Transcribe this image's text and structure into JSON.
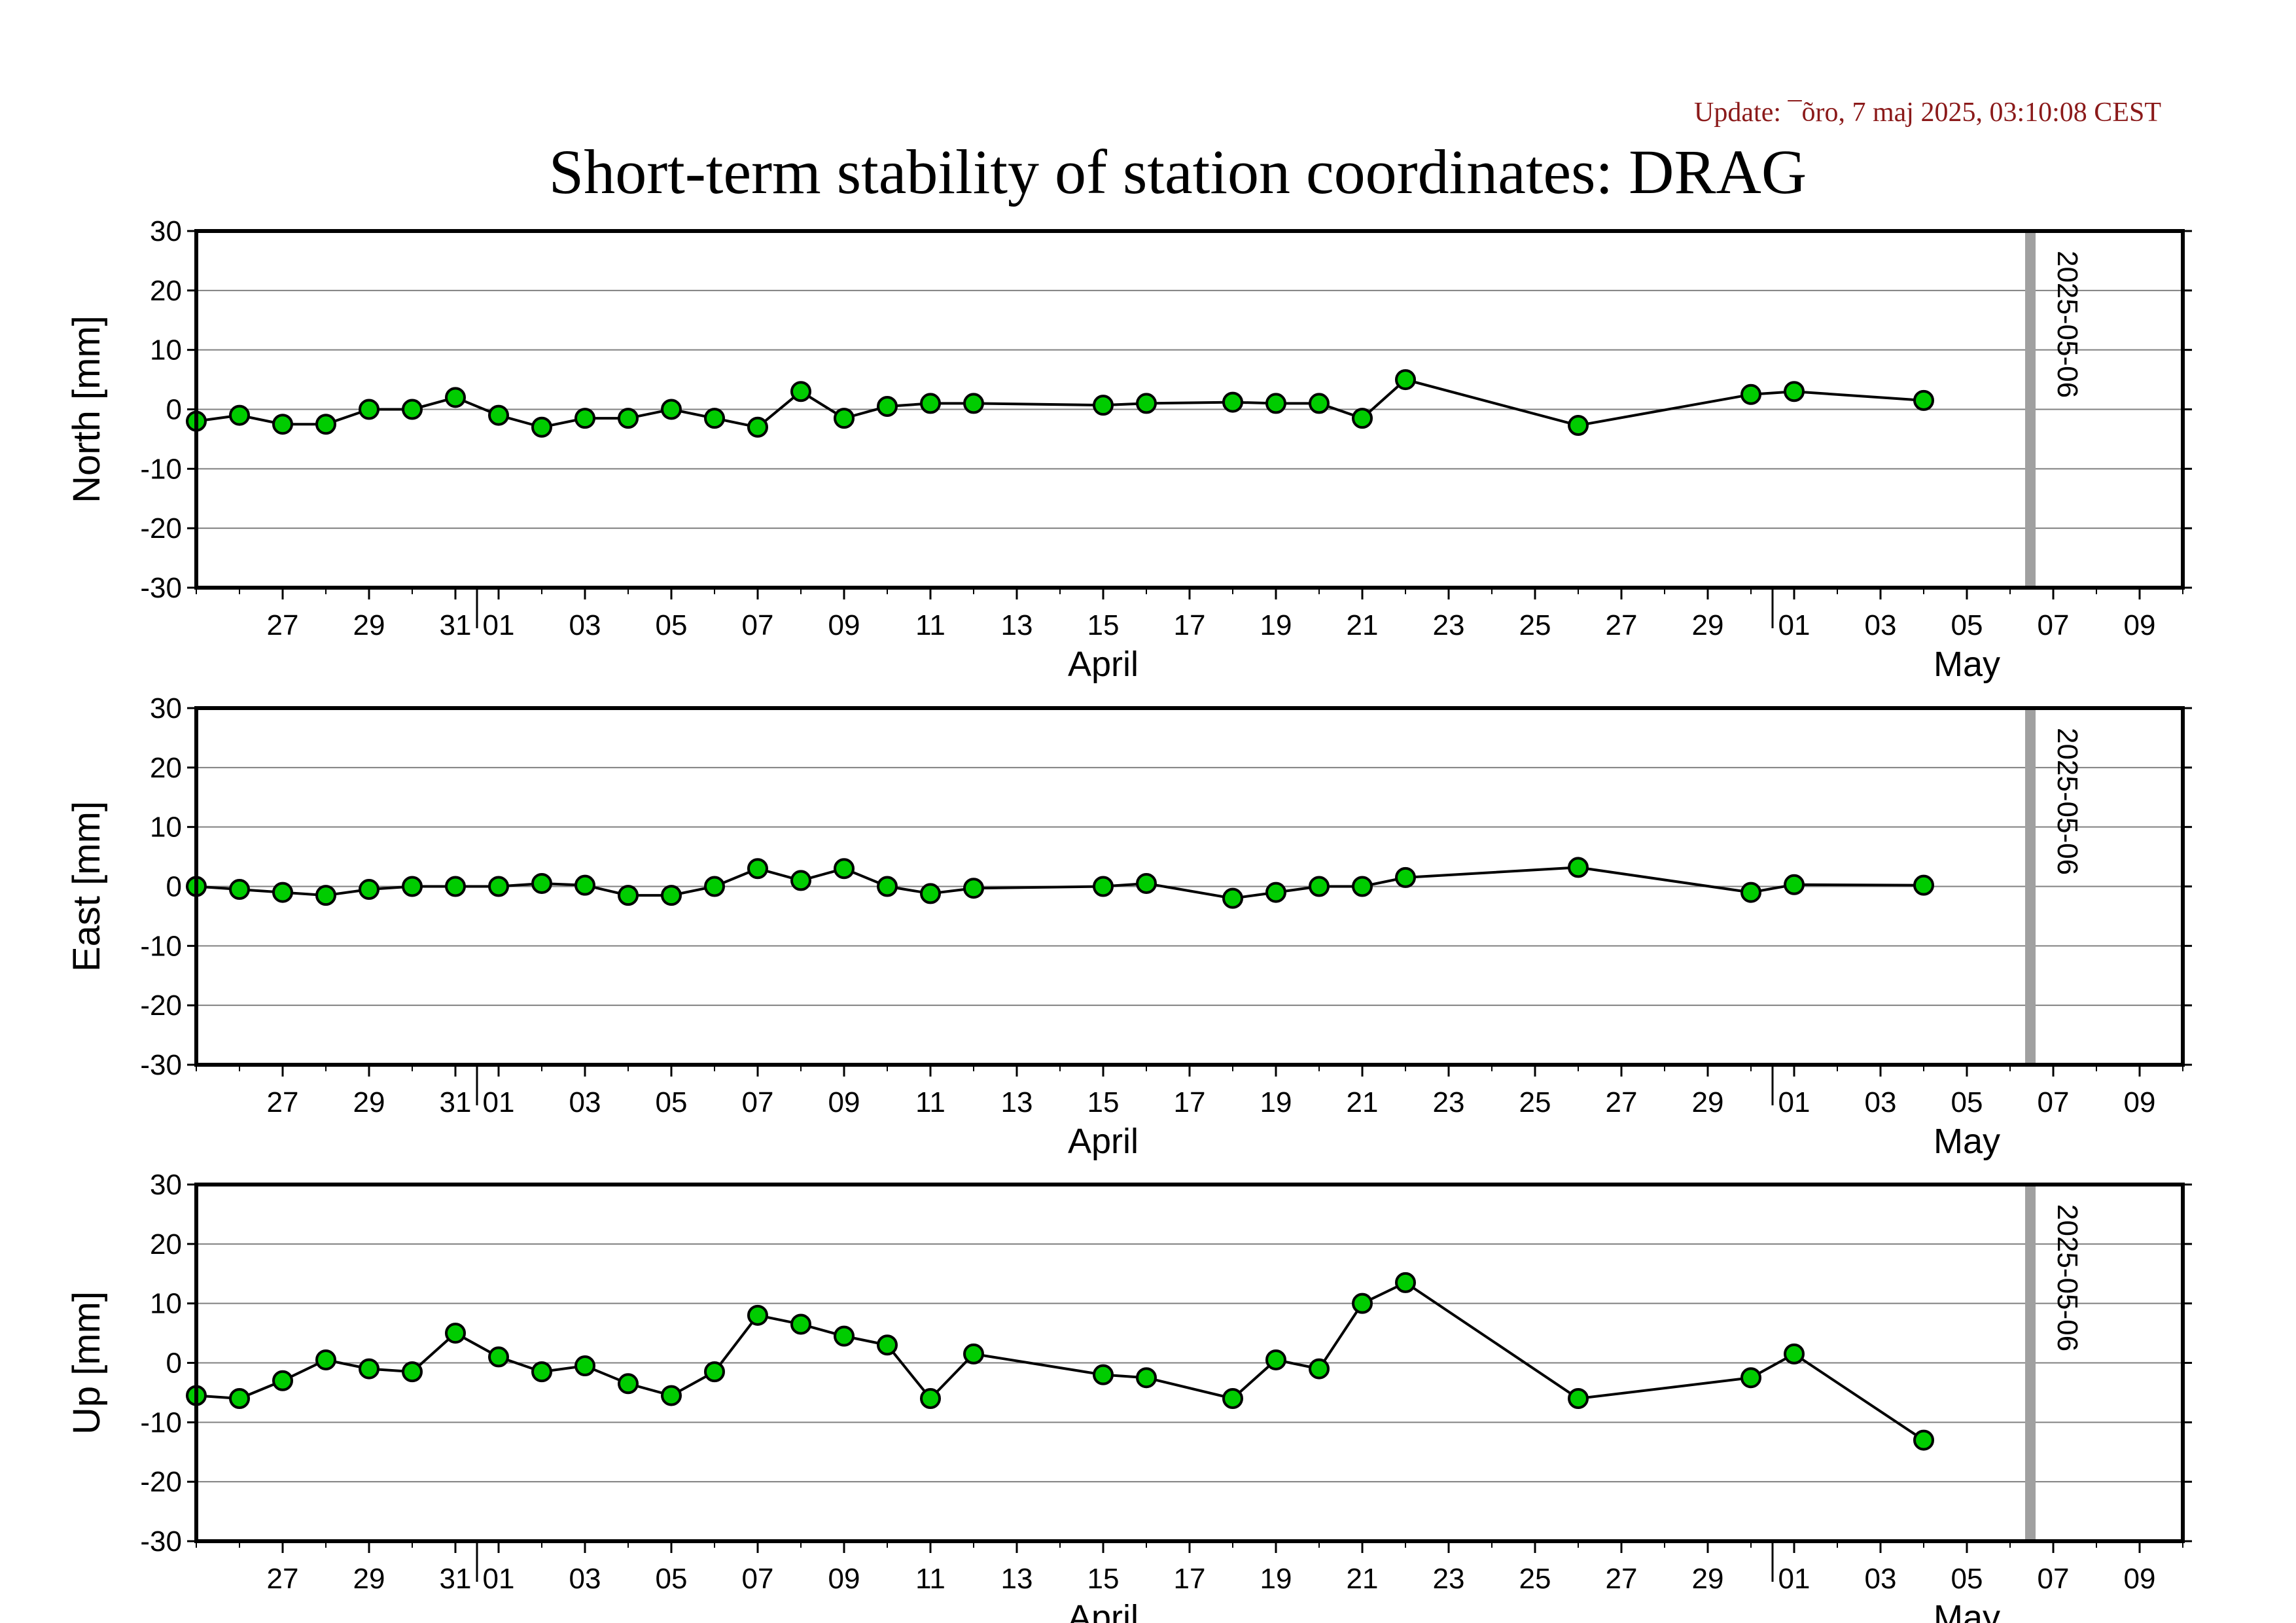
{
  "update_text": "Update: ¯õro, 7 maj 2025, 03:10:08 CEST",
  "title": "Short-term stability of station coordinates: DRAG",
  "chart_data": [
    {
      "type": "line",
      "ylabel": "North [mm]",
      "ylim": [
        -30,
        30
      ],
      "yticks": [
        -30,
        -20,
        -10,
        0,
        10,
        20,
        30
      ],
      "xlim": [
        "2025-03-25",
        "2025-05-10"
      ],
      "x_ticks": [
        {
          "date": "2025-03-27",
          "label": "27"
        },
        {
          "date": "2025-03-29",
          "label": "29"
        },
        {
          "date": "2025-03-31",
          "label": "31"
        },
        {
          "date": "2025-04-01",
          "label": "01"
        },
        {
          "date": "2025-04-03",
          "label": "03"
        },
        {
          "date": "2025-04-05",
          "label": "05"
        },
        {
          "date": "2025-04-07",
          "label": "07"
        },
        {
          "date": "2025-04-09",
          "label": "09"
        },
        {
          "date": "2025-04-11",
          "label": "11"
        },
        {
          "date": "2025-04-13",
          "label": "13"
        },
        {
          "date": "2025-04-15",
          "label": "15"
        },
        {
          "date": "2025-04-17",
          "label": "17"
        },
        {
          "date": "2025-04-19",
          "label": "19"
        },
        {
          "date": "2025-04-21",
          "label": "21"
        },
        {
          "date": "2025-04-23",
          "label": "23"
        },
        {
          "date": "2025-04-25",
          "label": "25"
        },
        {
          "date": "2025-04-27",
          "label": "27"
        },
        {
          "date": "2025-04-29",
          "label": "29"
        },
        {
          "date": "2025-05-01",
          "label": "01"
        },
        {
          "date": "2025-05-03",
          "label": "03"
        },
        {
          "date": "2025-05-05",
          "label": "05"
        },
        {
          "date": "2025-05-07",
          "label": "07"
        },
        {
          "date": "2025-05-09",
          "label": "09"
        }
      ],
      "month_labels": [
        {
          "date": "2025-04-15",
          "label": "April"
        },
        {
          "date": "2025-05-05",
          "label": "May"
        }
      ],
      "month_boundaries": [
        "2025-03-31T12:00",
        "2025-04-30T12:00"
      ],
      "marker": {
        "date": "2025-05-06",
        "label": "2025-05-06"
      },
      "grid": true,
      "series": [
        {
          "color": "#00cc00",
          "points": [
            [
              "2025-03-25",
              -2
            ],
            [
              "2025-03-26",
              -1
            ],
            [
              "2025-03-27",
              -2.5
            ],
            [
              "2025-03-28",
              -2.5
            ],
            [
              "2025-03-29",
              0
            ],
            [
              "2025-03-30",
              0
            ],
            [
              "2025-03-31",
              2
            ],
            [
              "2025-04-01",
              -1
            ],
            [
              "2025-04-02",
              -3
            ],
            [
              "2025-04-03",
              -1.5
            ],
            [
              "2025-04-04",
              -1.5
            ],
            [
              "2025-04-05",
              0
            ],
            [
              "2025-04-06",
              -1.5
            ],
            [
              "2025-04-07",
              -3
            ],
            [
              "2025-04-08",
              3
            ],
            [
              "2025-04-09",
              -1.5
            ],
            [
              "2025-04-10",
              0.5
            ],
            [
              "2025-04-11",
              1
            ],
            [
              "2025-04-12",
              1
            ],
            [
              "2025-04-15",
              0.7
            ],
            [
              "2025-04-16",
              1
            ],
            [
              "2025-04-18",
              1.2
            ],
            [
              "2025-04-19",
              1
            ],
            [
              "2025-04-20",
              1
            ],
            [
              "2025-04-21",
              -1.5
            ],
            [
              "2025-04-22",
              5
            ],
            [
              "2025-04-26",
              -2.7
            ],
            [
              "2025-04-30",
              2.5
            ],
            [
              "2025-05-01",
              3
            ],
            [
              "2025-05-04",
              1.5
            ]
          ]
        }
      ]
    },
    {
      "type": "line",
      "ylabel": "East [mm]",
      "ylim": [
        -30,
        30
      ],
      "yticks": [
        -30,
        -20,
        -10,
        0,
        10,
        20,
        30
      ],
      "xlim": [
        "2025-03-25",
        "2025-05-10"
      ],
      "x_ticks": [
        {
          "date": "2025-03-27",
          "label": "27"
        },
        {
          "date": "2025-03-29",
          "label": "29"
        },
        {
          "date": "2025-03-31",
          "label": "31"
        },
        {
          "date": "2025-04-01",
          "label": "01"
        },
        {
          "date": "2025-04-03",
          "label": "03"
        },
        {
          "date": "2025-04-05",
          "label": "05"
        },
        {
          "date": "2025-04-07",
          "label": "07"
        },
        {
          "date": "2025-04-09",
          "label": "09"
        },
        {
          "date": "2025-04-11",
          "label": "11"
        },
        {
          "date": "2025-04-13",
          "label": "13"
        },
        {
          "date": "2025-04-15",
          "label": "15"
        },
        {
          "date": "2025-04-17",
          "label": "17"
        },
        {
          "date": "2025-04-19",
          "label": "19"
        },
        {
          "date": "2025-04-21",
          "label": "21"
        },
        {
          "date": "2025-04-23",
          "label": "23"
        },
        {
          "date": "2025-04-25",
          "label": "25"
        },
        {
          "date": "2025-04-27",
          "label": "27"
        },
        {
          "date": "2025-04-29",
          "label": "29"
        },
        {
          "date": "2025-05-01",
          "label": "01"
        },
        {
          "date": "2025-05-03",
          "label": "03"
        },
        {
          "date": "2025-05-05",
          "label": "05"
        },
        {
          "date": "2025-05-07",
          "label": "07"
        },
        {
          "date": "2025-05-09",
          "label": "09"
        }
      ],
      "month_labels": [
        {
          "date": "2025-04-15",
          "label": "April"
        },
        {
          "date": "2025-05-05",
          "label": "May"
        }
      ],
      "month_boundaries": [
        "2025-03-31T12:00",
        "2025-04-30T12:00"
      ],
      "marker": {
        "date": "2025-05-06",
        "label": "2025-05-06"
      },
      "grid": true,
      "series": [
        {
          "color": "#00cc00",
          "points": [
            [
              "2025-03-25",
              0
            ],
            [
              "2025-03-26",
              -0.5
            ],
            [
              "2025-03-27",
              -1
            ],
            [
              "2025-03-28",
              -1.5
            ],
            [
              "2025-03-29",
              -0.5
            ],
            [
              "2025-03-30",
              0
            ],
            [
              "2025-03-31",
              0
            ],
            [
              "2025-04-01",
              0
            ],
            [
              "2025-04-02",
              0.5
            ],
            [
              "2025-04-03",
              0.2
            ],
            [
              "2025-04-04",
              -1.5
            ],
            [
              "2025-04-05",
              -1.5
            ],
            [
              "2025-04-06",
              0
            ],
            [
              "2025-04-07",
              3
            ],
            [
              "2025-04-08",
              1
            ],
            [
              "2025-04-09",
              3
            ],
            [
              "2025-04-10",
              0
            ],
            [
              "2025-04-11",
              -1.2
            ],
            [
              "2025-04-12",
              -0.3
            ],
            [
              "2025-04-15",
              0
            ],
            [
              "2025-04-16",
              0.5
            ],
            [
              "2025-04-18",
              -2
            ],
            [
              "2025-04-19",
              -1
            ],
            [
              "2025-04-20",
              0
            ],
            [
              "2025-04-21",
              0
            ],
            [
              "2025-04-22",
              1.5
            ],
            [
              "2025-04-26",
              3.2
            ],
            [
              "2025-04-30",
              -1
            ],
            [
              "2025-05-01",
              0.3
            ],
            [
              "2025-05-04",
              0.2
            ]
          ]
        }
      ]
    },
    {
      "type": "line",
      "ylabel": "Up [mm]",
      "ylim": [
        -30,
        30
      ],
      "yticks": [
        -30,
        -20,
        -10,
        0,
        10,
        20,
        30
      ],
      "xlim": [
        "2025-03-25",
        "2025-05-10"
      ],
      "x_ticks": [
        {
          "date": "2025-03-27",
          "label": "27"
        },
        {
          "date": "2025-03-29",
          "label": "29"
        },
        {
          "date": "2025-03-31",
          "label": "31"
        },
        {
          "date": "2025-04-01",
          "label": "01"
        },
        {
          "date": "2025-04-03",
          "label": "03"
        },
        {
          "date": "2025-04-05",
          "label": "05"
        },
        {
          "date": "2025-04-07",
          "label": "07"
        },
        {
          "date": "2025-04-09",
          "label": "09"
        },
        {
          "date": "2025-04-11",
          "label": "11"
        },
        {
          "date": "2025-04-13",
          "label": "13"
        },
        {
          "date": "2025-04-15",
          "label": "15"
        },
        {
          "date": "2025-04-17",
          "label": "17"
        },
        {
          "date": "2025-04-19",
          "label": "19"
        },
        {
          "date": "2025-04-21",
          "label": "21"
        },
        {
          "date": "2025-04-23",
          "label": "23"
        },
        {
          "date": "2025-04-25",
          "label": "25"
        },
        {
          "date": "2025-04-27",
          "label": "27"
        },
        {
          "date": "2025-04-29",
          "label": "29"
        },
        {
          "date": "2025-05-01",
          "label": "01"
        },
        {
          "date": "2025-05-03",
          "label": "03"
        },
        {
          "date": "2025-05-05",
          "label": "05"
        },
        {
          "date": "2025-05-07",
          "label": "07"
        },
        {
          "date": "2025-05-09",
          "label": "09"
        }
      ],
      "month_labels": [
        {
          "date": "2025-04-15",
          "label": "April"
        },
        {
          "date": "2025-05-05",
          "label": "May"
        }
      ],
      "month_boundaries": [
        "2025-03-31T12:00",
        "2025-04-30T12:00"
      ],
      "marker": {
        "date": "2025-05-06",
        "label": "2025-05-06"
      },
      "grid": true,
      "series": [
        {
          "color": "#00cc00",
          "points": [
            [
              "2025-03-25",
              -5.5
            ],
            [
              "2025-03-26",
              -6
            ],
            [
              "2025-03-27",
              -3
            ],
            [
              "2025-03-28",
              0.5
            ],
            [
              "2025-03-29",
              -1
            ],
            [
              "2025-03-30",
              -1.5
            ],
            [
              "2025-03-31",
              5
            ],
            [
              "2025-04-01",
              1
            ],
            [
              "2025-04-02",
              -1.5
            ],
            [
              "2025-04-03",
              -0.5
            ],
            [
              "2025-04-04",
              -3.5
            ],
            [
              "2025-04-05",
              -5.5
            ],
            [
              "2025-04-06",
              -1.5
            ],
            [
              "2025-04-07",
              8
            ],
            [
              "2025-04-08",
              6.5
            ],
            [
              "2025-04-09",
              4.5
            ],
            [
              "2025-04-10",
              3
            ],
            [
              "2025-04-11",
              -6
            ],
            [
              "2025-04-12",
              1.5
            ],
            [
              "2025-04-15",
              -2
            ],
            [
              "2025-04-16",
              -2.5
            ],
            [
              "2025-04-18",
              -6
            ],
            [
              "2025-04-19",
              0.5
            ],
            [
              "2025-04-20",
              -1
            ],
            [
              "2025-04-21",
              10
            ],
            [
              "2025-04-22",
              13.5
            ],
            [
              "2025-04-26",
              -6
            ],
            [
              "2025-04-30",
              -2.5
            ],
            [
              "2025-05-01",
              1.5
            ],
            [
              "2025-05-04",
              -13
            ]
          ]
        }
      ]
    }
  ]
}
